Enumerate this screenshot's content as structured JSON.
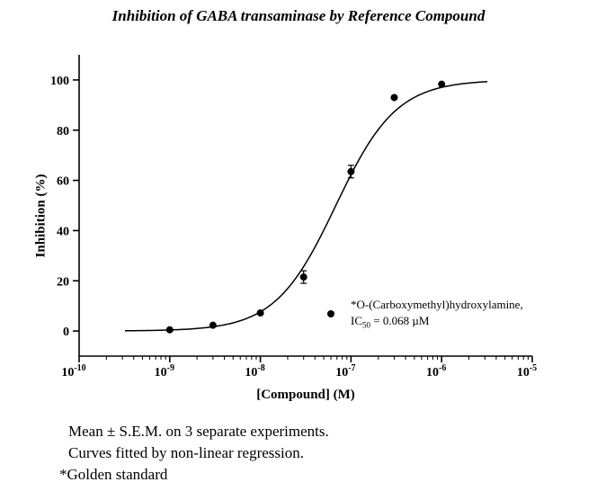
{
  "chart_data": {
    "type": "scatter",
    "title": "Inhibition of GABA transaminase by Reference Compound",
    "xlabel": "[Compound] (M)",
    "ylabel": "Inhibition (%)",
    "xscale": "log",
    "xlim": [
      1e-10,
      1e-05
    ],
    "ylim": [
      -10,
      110
    ],
    "x_ticks": [
      {
        "value": 1e-10,
        "base": "10",
        "exp": "-10"
      },
      {
        "value": 1e-09,
        "base": "10",
        "exp": "-9"
      },
      {
        "value": 1e-08,
        "base": "10",
        "exp": "-8"
      },
      {
        "value": 1e-07,
        "base": "10",
        "exp": "-7"
      },
      {
        "value": 1e-06,
        "base": "10",
        "exp": "-6"
      },
      {
        "value": 1e-05,
        "base": "10",
        "exp": "-5"
      }
    ],
    "y_ticks": [
      0,
      20,
      40,
      60,
      80,
      100
    ],
    "series": [
      {
        "name": "*O-(Carboxymethyl)hydroxylamine,",
        "x": [
          1e-09,
          3e-09,
          1e-08,
          3e-08,
          1e-07,
          3e-07,
          1e-06
        ],
        "y": [
          0.5,
          2.3,
          7.2,
          21.5,
          63.5,
          93,
          98.3
        ],
        "sem": [
          0,
          0,
          0,
          2.5,
          2.5,
          0,
          0
        ]
      }
    ],
    "fit": {
      "model": "sigmoidal dose-response",
      "bottom": 0,
      "top": 100,
      "ic50": 6.8e-08,
      "hill": 1.3,
      "x_range": [
        3.2e-10,
        3.2e-06
      ]
    },
    "legend": {
      "line1": "*O-(Carboxymethyl)hydroxylamine,",
      "ic_prefix": "IC",
      "ic_sub": "50",
      "ic_value": " = 0.068 µM",
      "placement": "lower-right"
    },
    "grid": false
  },
  "footnotes": {
    "line1": "Mean ± S.E.M. on 3 separate experiments.",
    "line2": "Curves fitted by non-linear regression.",
    "line3": "*Golden standard"
  }
}
